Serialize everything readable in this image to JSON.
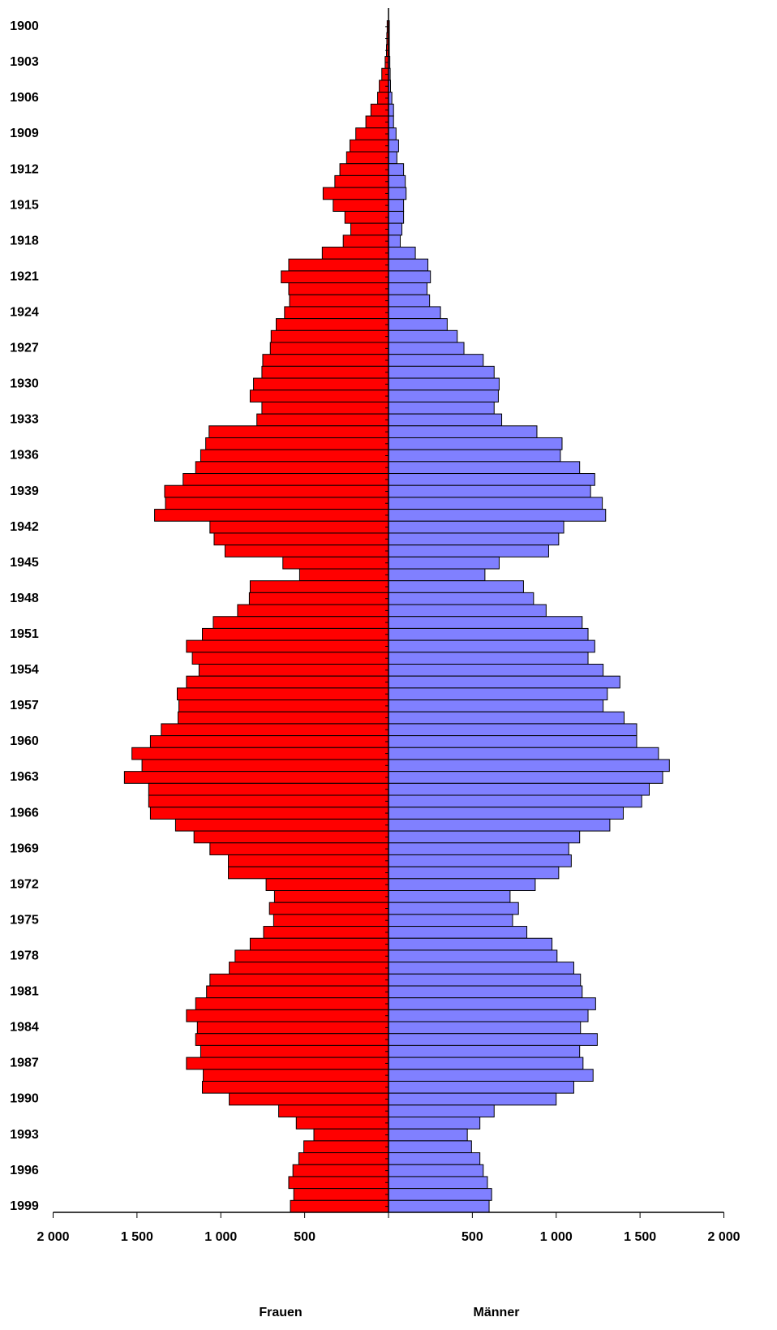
{
  "chart_data": {
    "type": "pyramid",
    "categories": [
      "1900",
      null,
      null,
      "1903",
      null,
      null,
      "1906",
      null,
      null,
      "1909",
      null,
      null,
      "1912",
      null,
      null,
      "1915",
      null,
      null,
      "1918",
      null,
      null,
      "1921",
      null,
      null,
      "1924",
      null,
      null,
      "1927",
      null,
      null,
      "1930",
      null,
      null,
      "1933",
      null,
      null,
      "1936",
      null,
      null,
      "1939",
      null,
      null,
      "1942",
      null,
      null,
      "1945",
      null,
      null,
      "1948",
      null,
      null,
      "1951",
      null,
      null,
      "1954",
      null,
      null,
      "1957",
      null,
      null,
      "1960",
      null,
      null,
      "1963",
      null,
      null,
      "1966",
      null,
      null,
      "1969",
      null,
      null,
      "1972",
      null,
      null,
      "1975",
      null,
      null,
      "1978",
      null,
      null,
      "1981",
      null,
      null,
      "1984",
      null,
      null,
      "1987",
      null,
      null,
      "1990",
      null,
      null,
      "1993",
      null,
      null,
      "1996",
      null,
      null,
      "1999"
    ],
    "series": [
      {
        "name": "Frauen",
        "color": "#ff0000",
        "values": [
          8,
          10,
          12,
          20,
          40,
          55,
          65,
          105,
          135,
          195,
          230,
          250,
          290,
          320,
          390,
          330,
          260,
          225,
          270,
          395,
          595,
          640,
          595,
          590,
          620,
          670,
          700,
          705,
          750,
          755,
          805,
          825,
          755,
          785,
          1070,
          1090,
          1120,
          1150,
          1225,
          1335,
          1330,
          1395,
          1065,
          1040,
          975,
          630,
          530,
          825,
          830,
          900,
          1045,
          1110,
          1205,
          1170,
          1130,
          1205,
          1260,
          1250,
          1255,
          1355,
          1420,
          1530,
          1470,
          1575,
          1430,
          1430,
          1420,
          1270,
          1160,
          1065,
          955,
          955,
          730,
          680,
          710,
          685,
          745,
          825,
          915,
          950,
          1065,
          1085,
          1150,
          1205,
          1140,
          1150,
          1120,
          1205,
          1105,
          1110,
          950,
          655,
          550,
          445,
          505,
          535,
          570,
          595,
          565,
          585
        ]
      },
      {
        "name": "Männer",
        "color": "#8080ff",
        "values": [
          5,
          5,
          5,
          8,
          10,
          12,
          20,
          30,
          30,
          45,
          60,
          50,
          90,
          100,
          105,
          90,
          90,
          80,
          70,
          160,
          235,
          250,
          230,
          245,
          310,
          350,
          410,
          450,
          565,
          630,
          660,
          655,
          630,
          675,
          885,
          1035,
          1025,
          1140,
          1230,
          1205,
          1275,
          1295,
          1045,
          1015,
          955,
          660,
          575,
          805,
          865,
          940,
          1155,
          1190,
          1230,
          1190,
          1280,
          1380,
          1305,
          1280,
          1405,
          1480,
          1480,
          1610,
          1675,
          1635,
          1555,
          1510,
          1400,
          1320,
          1140,
          1075,
          1090,
          1015,
          875,
          725,
          775,
          740,
          825,
          975,
          1005,
          1105,
          1145,
          1155,
          1235,
          1190,
          1145,
          1245,
          1140,
          1160,
          1220,
          1105,
          1000,
          630,
          545,
          470,
          495,
          545,
          565,
          590,
          615,
          600
        ]
      }
    ],
    "xlim": [
      0,
      2000
    ],
    "xticks": [
      500,
      {
        "value": 1000,
        "label": "1 000"
      },
      {
        "value": 1500,
        "label": "1 500"
      },
      {
        "value": 2000,
        "label": "2 000"
      }
    ]
  }
}
